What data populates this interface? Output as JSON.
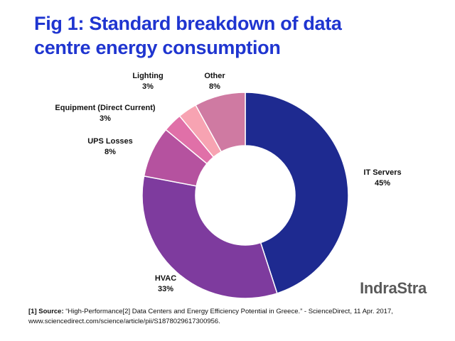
{
  "title": {
    "line1": "Fig 1: Standard breakdown of data",
    "line2": "centre energy consumption"
  },
  "chart_data": {
    "type": "donut",
    "title": "Fig 1: Standard breakdown of data centre energy consumption",
    "unit": "%",
    "slices": [
      {
        "label": "IT Servers",
        "value": 45,
        "display": "45%",
        "color": "#1e2a90"
      },
      {
        "label": "HVAC",
        "value": 33,
        "display": "33%",
        "color": "#7e3b9e"
      },
      {
        "label": "UPS Losses",
        "value": 8,
        "display": "8%",
        "color": "#b5529f"
      },
      {
        "label": "Equipment (Direct Current)",
        "value": 3,
        "display": "3%",
        "color": "#e070a8"
      },
      {
        "label": "Lighting",
        "value": 3,
        "display": "3%",
        "color": "#f7a3b2"
      },
      {
        "label": "Other",
        "value": 8,
        "display": "8%",
        "color": "#cf7aa2"
      }
    ]
  },
  "brand": "IndraStra",
  "footnote": {
    "source_label": "[1] Source:",
    "text": "“High-Performance[2] Data Centers and Energy Efficiency Potential in Greece.” - ScienceDirect, 11 Apr. 2017, www.sciencedirect.com/science/article/pii/S1878029617300956."
  },
  "colors": {
    "title": "#1f35d0",
    "brand": "#5a5a5a"
  }
}
